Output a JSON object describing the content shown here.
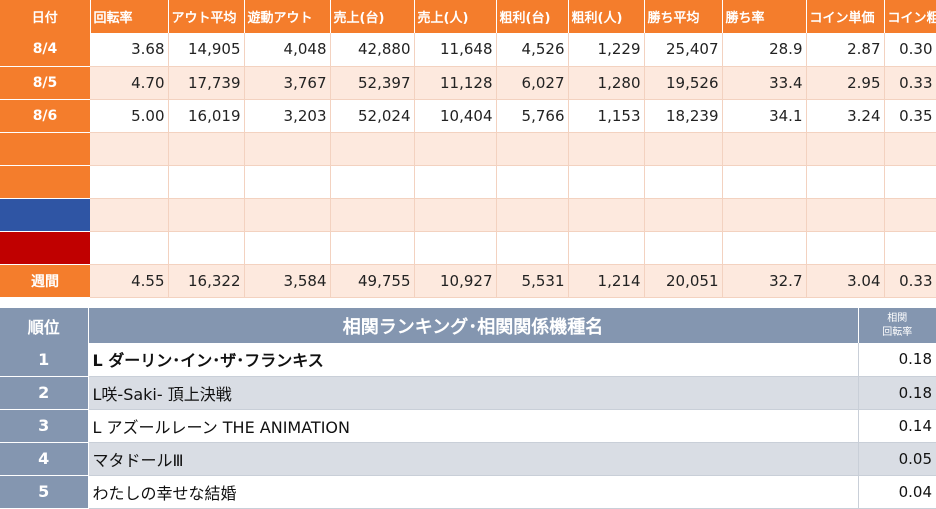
{
  "stats": {
    "headers": [
      "日付",
      "回転率",
      "アウト平均",
      "遊動アウト",
      "売上(台)",
      "売上(人)",
      "粗利(台)",
      "粗利(人)",
      "勝ち平均",
      "勝ち率",
      "コイン単価",
      "コイン粗利"
    ],
    "rows": [
      {
        "date": "8/4",
        "values": [
          "3.68",
          "14,905",
          "4,048",
          "42,880",
          "11,648",
          "4,526",
          "1,229",
          "25,407",
          "28.9",
          "2.87",
          "0.30"
        ]
      },
      {
        "date": "8/5",
        "values": [
          "4.70",
          "17,739",
          "3,767",
          "52,397",
          "11,128",
          "6,027",
          "1,280",
          "19,526",
          "33.4",
          "2.95",
          "0.33"
        ]
      },
      {
        "date": "8/6",
        "values": [
          "5.00",
          "16,019",
          "3,203",
          "52,024",
          "10,404",
          "5,766",
          "1,153",
          "18,239",
          "34.1",
          "3.24",
          "0.35"
        ]
      },
      {
        "date": "",
        "values": [
          "",
          "",
          "",
          "",
          "",
          "",
          "",
          "",
          "",
          "",
          ""
        ]
      },
      {
        "date": "",
        "values": [
          "",
          "",
          "",
          "",
          "",
          "",
          "",
          "",
          "",
          "",
          ""
        ]
      },
      {
        "date": "",
        "values": [
          "",
          "",
          "",
          "",
          "",
          "",
          "",
          "",
          "",
          "",
          ""
        ]
      },
      {
        "date": "",
        "values": [
          "",
          "",
          "",
          "",
          "",
          "",
          "",
          "",
          "",
          "",
          ""
        ]
      }
    ],
    "row_date_colors": [
      "#f47d2c",
      "#f47d2c",
      "#f47d2c",
      "#f47d2c",
      "#f47d2c",
      "#2f55a4",
      "#c00000"
    ],
    "week": {
      "label": "週間",
      "values": [
        "4.55",
        "16,322",
        "3,584",
        "49,755",
        "10,927",
        "5,531",
        "1,214",
        "20,051",
        "32.7",
        "3.04",
        "0.33"
      ]
    }
  },
  "ranking": {
    "header_rank": "順位",
    "header_name": "相関ランキング･相関関係機種名",
    "header_coef_line1": "相関",
    "header_coef_line2": "回転率",
    "rows": [
      {
        "rank": "1",
        "name": "L ダーリン･イン･ザ･フランキス",
        "coef": "0.18"
      },
      {
        "rank": "2",
        "name": "L咲-Saki- 頂上決戦",
        "coef": "0.18"
      },
      {
        "rank": "3",
        "name": "L アズールレーン THE ANIMATION",
        "coef": "0.14"
      },
      {
        "rank": "4",
        "name": "マタドールⅢ",
        "coef": "0.05"
      },
      {
        "rank": "5",
        "name": "わたしの幸せな結婚",
        "coef": "0.04"
      }
    ]
  }
}
